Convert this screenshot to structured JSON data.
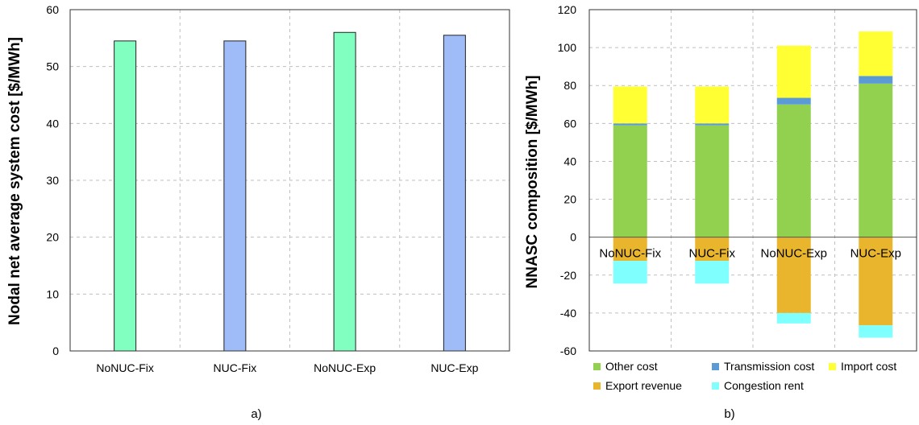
{
  "chart_data": [
    {
      "type": "bar",
      "panel_label": "a)",
      "categories": [
        "NoNUC-Fix",
        "NUC-Fix",
        "NoNUC-Exp",
        "NUC-Exp"
      ],
      "values": [
        54.5,
        54.5,
        56.0,
        55.5
      ],
      "bar_colors": [
        "#80ffc0",
        "#a0bcf8",
        "#80ffc0",
        "#a0bcf8"
      ],
      "ylabel": "Nodal net average system cost [$/MWh]",
      "ylim": [
        0,
        60
      ],
      "yticks": [
        0,
        10,
        20,
        30,
        40,
        50,
        60
      ],
      "grid": true
    },
    {
      "type": "bar",
      "stacked": true,
      "panel_label": "b)",
      "categories": [
        "NoNUC-Fix",
        "NUC-Fix",
        "NoNUC-Exp",
        "NUC-Exp"
      ],
      "series": [
        {
          "name": "Other cost",
          "color": "#92d050",
          "values": [
            59,
            59,
            70,
            81
          ]
        },
        {
          "name": "Transmission cost",
          "color": "#5b9bd5",
          "values": [
            1,
            1,
            3.5,
            4
          ]
        },
        {
          "name": "Import  cost",
          "color": "#ffff33",
          "values": [
            19.5,
            19.5,
            27.5,
            23.5
          ]
        },
        {
          "name": "Export revenue",
          "color": "#e8b52c",
          "values": [
            -12.5,
            -12.5,
            -40,
            -46.5
          ]
        },
        {
          "name": "Congestion rent",
          "color": "#80ffff",
          "values": [
            -12,
            -12,
            -5.5,
            -6.5
          ]
        }
      ],
      "ylabel": "NNASC composition [$/MWh]",
      "ylim": [
        -60,
        120
      ],
      "yticks": [
        -60,
        -40,
        -20,
        0,
        20,
        40,
        60,
        80,
        100,
        120
      ],
      "grid": true,
      "legend_position": "bottom"
    }
  ]
}
